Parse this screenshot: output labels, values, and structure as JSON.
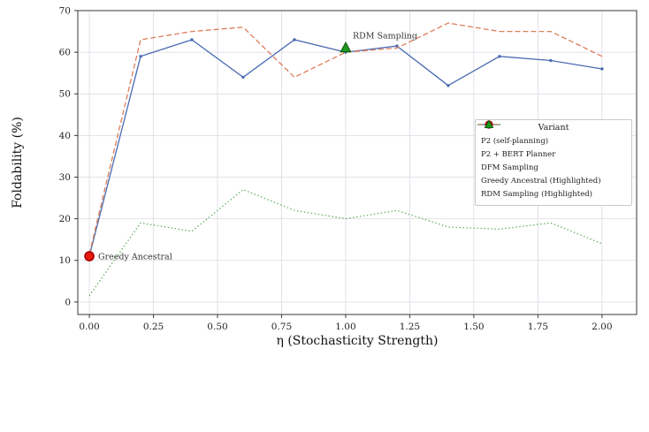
{
  "chart_data": {
    "type": "line",
    "title": "",
    "xlabel": "η (Stochasticity Strength)",
    "ylabel": "Foldability (%)",
    "xlim": [
      -0.045,
      2.135
    ],
    "ylim": [
      -3,
      70
    ],
    "xticks": [
      0.0,
      0.25,
      0.5,
      0.75,
      1.0,
      1.25,
      1.5,
      1.75,
      2.0
    ],
    "xtick_labels": [
      "0.00",
      "0.25",
      "0.50",
      "0.75",
      "1.00",
      "1.25",
      "1.50",
      "1.75",
      "2.00"
    ],
    "yticks": [
      0,
      10,
      20,
      30,
      40,
      50,
      60,
      70
    ],
    "ytick_labels": [
      "0",
      "10",
      "20",
      "30",
      "40",
      "50",
      "60",
      "70"
    ],
    "grid": true,
    "legend_title": "Variant",
    "legend_position": "center right",
    "x": [
      0.0,
      0.2,
      0.4,
      0.6,
      0.8,
      1.0,
      1.2,
      1.4,
      1.6,
      1.8,
      2.0
    ],
    "series": [
      {
        "name": "P2 (self-planning)",
        "color": "#4a6cb3",
        "line_style": "solid",
        "marker": "dot",
        "values": [
          11,
          59,
          63,
          54,
          63,
          60,
          61.5,
          52,
          59,
          58,
          56
        ]
      },
      {
        "name": "P2 + BERT Planner",
        "color": "#dd7e5a",
        "line_style": "dashed",
        "marker": null,
        "values": [
          11.5,
          63,
          65,
          66,
          54,
          60,
          61,
          67,
          65,
          65,
          59
        ]
      },
      {
        "name": "DFM Sampling",
        "color": "#5fad5f",
        "line_style": "dotted",
        "marker": null,
        "values": [
          1.5,
          19,
          17,
          27,
          22,
          20,
          22,
          18,
          17.5,
          19,
          14
        ]
      }
    ],
    "highlights": [
      {
        "name": "Greedy Ancestral (Highlighted)",
        "label": "Greedy Ancestral",
        "x": 0.0,
        "y": 11,
        "marker": "circle",
        "color": "#e8190d",
        "edge": "#a00000"
      },
      {
        "name": "RDM Sampling (Highlighted)",
        "label": "RDM Sampling",
        "x": 1.0,
        "y": 61,
        "marker": "triangle",
        "color": "#1f9a1f",
        "edge": "#0b5f0b"
      }
    ],
    "colors": {
      "grid": "#dadae4",
      "spine": "#3a3a3a"
    }
  }
}
